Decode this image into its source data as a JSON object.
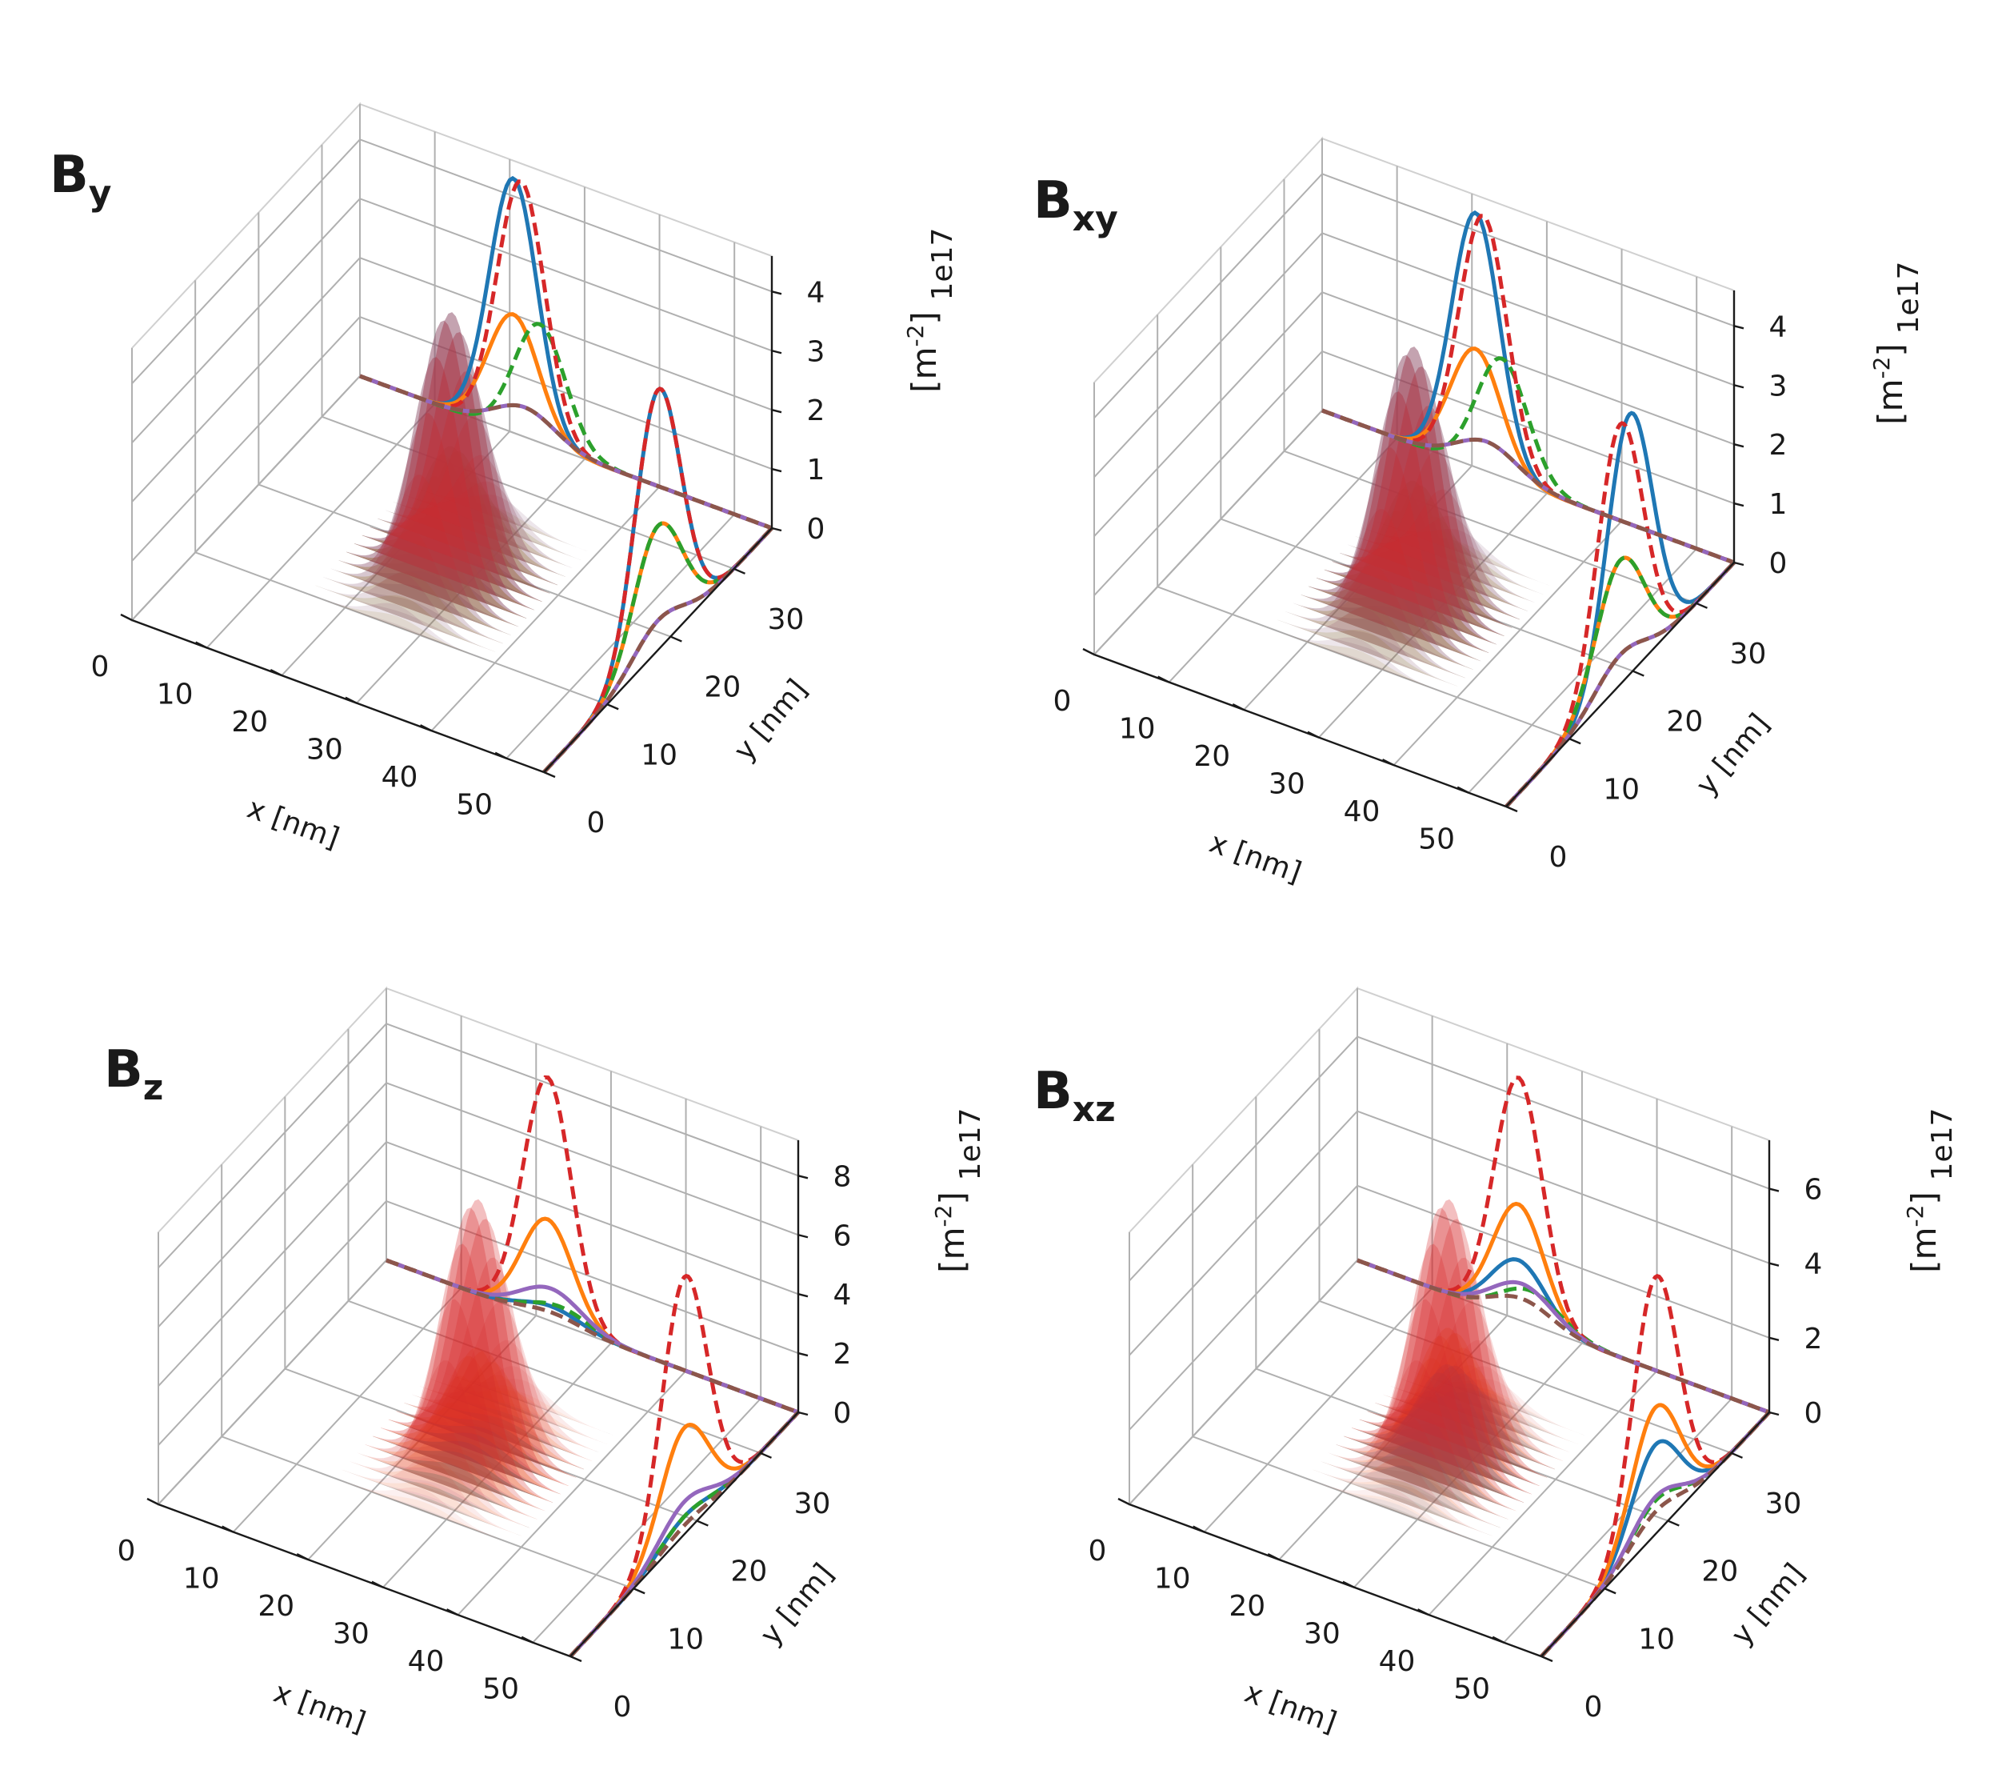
{
  "figure": {
    "colors": {
      "blue": "#1f77b4",
      "orange": "#ff7f0e",
      "green": "#2ca02c",
      "red": "#d62728",
      "purple": "#9467bd",
      "brown": "#8c564b"
    },
    "pane_color": "#f0f0f0"
  },
  "chart_data": [
    {
      "type": "3d-surface-with-projections",
      "title_main": "B",
      "title_sub": "y",
      "xlabel": "x [nm]",
      "ylabel": "y [nm]",
      "zlabel_base": "[m",
      "zlabel_sup": "-2",
      "zlabel_close": "]",
      "offset_text": "1e17",
      "x_ticks": [
        "0",
        "10",
        "20",
        "30",
        "40",
        "50"
      ],
      "y_ticks": [
        "0",
        "10",
        "20",
        "30"
      ],
      "z_ticks": [
        "0",
        "1",
        "2",
        "3",
        "4"
      ],
      "xlim": [
        0,
        55
      ],
      "ylim": [
        0,
        36
      ],
      "zlim": [
        0,
        4.6
      ],
      "surface_center": [
        27,
        18
      ],
      "series": [
        {
          "name": "blue",
          "style": "solid",
          "x_peak": 20.5,
          "x_width": 3.2,
          "x_amp": 4.3,
          "y_peak": 18,
          "y_width": 3.6,
          "y_amp": 4.4
        },
        {
          "name": "orange",
          "style": "solid",
          "x_peak": 20.5,
          "x_width": 3.4,
          "x_amp": 2.0,
          "y_peak": 18,
          "y_width": 3.8,
          "y_amp": 2.1
        },
        {
          "name": "green",
          "style": "dashed",
          "x_peak": 24.0,
          "x_width": 3.4,
          "x_amp": 2.0,
          "y_peak": 18,
          "y_width": 3.8,
          "y_amp": 2.1
        },
        {
          "name": "red",
          "style": "dashed",
          "x_peak": 21.5,
          "x_width": 3.2,
          "x_amp": 4.3,
          "y_peak": 18,
          "y_width": 3.6,
          "y_amp": 4.4
        },
        {
          "name": "purple",
          "style": "solid",
          "x_peak": 22.0,
          "x_width": 4.0,
          "x_amp": 0.5,
          "y_peak": 18,
          "y_width": 4.0,
          "y_amp": 0.5
        },
        {
          "name": "brown",
          "style": "dashed",
          "x_peak": 22.0,
          "x_width": 4.0,
          "x_amp": 0.5,
          "y_peak": 18,
          "y_width": 4.0,
          "y_amp": 0.5
        }
      ]
    },
    {
      "type": "3d-surface-with-projections",
      "title_main": "B",
      "title_sub": "xy",
      "xlabel": "x [nm]",
      "ylabel": "y [nm]",
      "zlabel_base": "[m",
      "zlabel_sup": "-2",
      "zlabel_close": "]",
      "offset_text": "1e17",
      "x_ticks": [
        "0",
        "10",
        "20",
        "30",
        "40",
        "50"
      ],
      "y_ticks": [
        "0",
        "10",
        "20",
        "30"
      ],
      "z_ticks": [
        "0",
        "1",
        "2",
        "3",
        "4"
      ],
      "xlim": [
        0,
        55
      ],
      "ylim": [
        0,
        36
      ],
      "zlim": [
        0,
        4.6
      ],
      "surface_center": [
        27,
        18
      ],
      "series": [
        {
          "name": "blue",
          "style": "solid",
          "x_peak": 20.5,
          "x_width": 3.2,
          "x_amp": 4.3,
          "y_peak": 19.5,
          "y_width": 3.6,
          "y_amp": 4.4
        },
        {
          "name": "orange",
          "style": "solid",
          "x_peak": 20.5,
          "x_width": 3.4,
          "x_amp": 2.0,
          "y_peak": 18,
          "y_width": 3.8,
          "y_amp": 2.1
        },
        {
          "name": "green",
          "style": "dashed",
          "x_peak": 24.0,
          "x_width": 3.4,
          "x_amp": 2.0,
          "y_peak": 18,
          "y_width": 3.8,
          "y_amp": 2.1
        },
        {
          "name": "red",
          "style": "dashed",
          "x_peak": 21.5,
          "x_width": 3.2,
          "x_amp": 4.3,
          "y_peak": 18,
          "y_width": 3.6,
          "y_amp": 4.4
        },
        {
          "name": "purple",
          "style": "solid",
          "x_peak": 22.0,
          "x_width": 4.0,
          "x_amp": 0.5,
          "y_peak": 18,
          "y_width": 4.0,
          "y_amp": 0.5
        },
        {
          "name": "brown",
          "style": "dashed",
          "x_peak": 22.0,
          "x_width": 4.0,
          "x_amp": 0.5,
          "y_peak": 18,
          "y_width": 4.0,
          "y_amp": 0.5
        }
      ]
    },
    {
      "type": "3d-surface-with-projections",
      "title_main": "B",
      "title_sub": "z",
      "xlabel": "x [nm]",
      "ylabel": "y [nm]",
      "zlabel_base": "[m",
      "zlabel_sup": "-2",
      "zlabel_close": "]",
      "offset_text": "1e17",
      "x_ticks": [
        "0",
        "10",
        "20",
        "30",
        "40",
        "50"
      ],
      "y_ticks": [
        "0",
        "10",
        "20",
        "30"
      ],
      "z_ticks": [
        "0",
        "2",
        "4",
        "6",
        "8"
      ],
      "xlim": [
        0,
        55
      ],
      "ylim": [
        0,
        36
      ],
      "zlim": [
        0,
        9.2
      ],
      "surface_center": [
        27,
        18
      ],
      "series": [
        {
          "name": "blue",
          "style": "solid",
          "x_peak": 22.0,
          "x_width": 4.0,
          "x_amp": 0.5,
          "y_peak": 18,
          "y_width": 4.0,
          "y_amp": 0.6
        },
        {
          "name": "orange",
          "style": "solid",
          "x_peak": 21.5,
          "x_width": 3.4,
          "x_amp": 3.4,
          "y_peak": 18,
          "y_width": 3.8,
          "y_amp": 3.6
        },
        {
          "name": "green",
          "style": "dashed",
          "x_peak": 23.0,
          "x_width": 4.0,
          "x_amp": 0.6,
          "y_peak": 18,
          "y_width": 4.0,
          "y_amp": 0.6
        },
        {
          "name": "red",
          "style": "dashed",
          "x_peak": 21.5,
          "x_width": 3.2,
          "x_amp": 8.2,
          "y_peak": 18,
          "y_width": 3.6,
          "y_amp": 8.7
        },
        {
          "name": "purple",
          "style": "solid",
          "x_peak": 22.0,
          "x_width": 4.0,
          "x_amp": 1.1,
          "y_peak": 18,
          "y_width": 4.0,
          "y_amp": 1.1
        },
        {
          "name": "brown",
          "style": "dashed",
          "x_peak": 22.0,
          "x_width": 4.0,
          "x_amp": 0.3,
          "y_peak": 18,
          "y_width": 4.0,
          "y_amp": 0.3
        }
      ]
    },
    {
      "type": "3d-surface-with-projections",
      "title_main": "B",
      "title_sub": "xz",
      "xlabel": "x [nm]",
      "ylabel": "y [nm]",
      "zlabel_base": "[m",
      "zlabel_sup": "-2",
      "zlabel_close": "]",
      "offset_text": "1e17",
      "x_ticks": [
        "0",
        "10",
        "20",
        "30",
        "40",
        "50"
      ],
      "y_ticks": [
        "0",
        "10",
        "20",
        "30"
      ],
      "z_ticks": [
        "0",
        "2",
        "4",
        "6"
      ],
      "xlim": [
        0,
        55
      ],
      "ylim": [
        0,
        36
      ],
      "zlim": [
        0,
        7.3
      ],
      "surface_center": [
        27,
        18
      ],
      "series": [
        {
          "name": "blue",
          "style": "solid",
          "x_peak": 21.5,
          "x_width": 3.6,
          "x_amp": 1.6,
          "y_peak": 18,
          "y_width": 3.8,
          "y_amp": 2.4
        },
        {
          "name": "orange",
          "style": "solid",
          "x_peak": 21.5,
          "x_width": 3.4,
          "x_amp": 3.1,
          "y_peak": 18,
          "y_width": 3.8,
          "y_amp": 3.4
        },
        {
          "name": "green",
          "style": "dashed",
          "x_peak": 23.0,
          "x_width": 4.0,
          "x_amp": 0.9,
          "y_peak": 18,
          "y_width": 4.0,
          "y_amp": 0.9
        },
        {
          "name": "red",
          "style": "dashed",
          "x_peak": 21.5,
          "x_width": 3.2,
          "x_amp": 6.5,
          "y_peak": 18,
          "y_width": 3.6,
          "y_amp": 6.9
        },
        {
          "name": "purple",
          "style": "solid",
          "x_peak": 22.0,
          "x_width": 4.0,
          "x_amp": 1.0,
          "y_peak": 18,
          "y_width": 4.0,
          "y_amp": 1.0
        },
        {
          "name": "brown",
          "style": "dashed",
          "x_peak": 22.0,
          "x_width": 4.0,
          "x_amp": 0.6,
          "y_peak": 18,
          "y_width": 4.0,
          "y_amp": 0.6
        }
      ]
    }
  ]
}
